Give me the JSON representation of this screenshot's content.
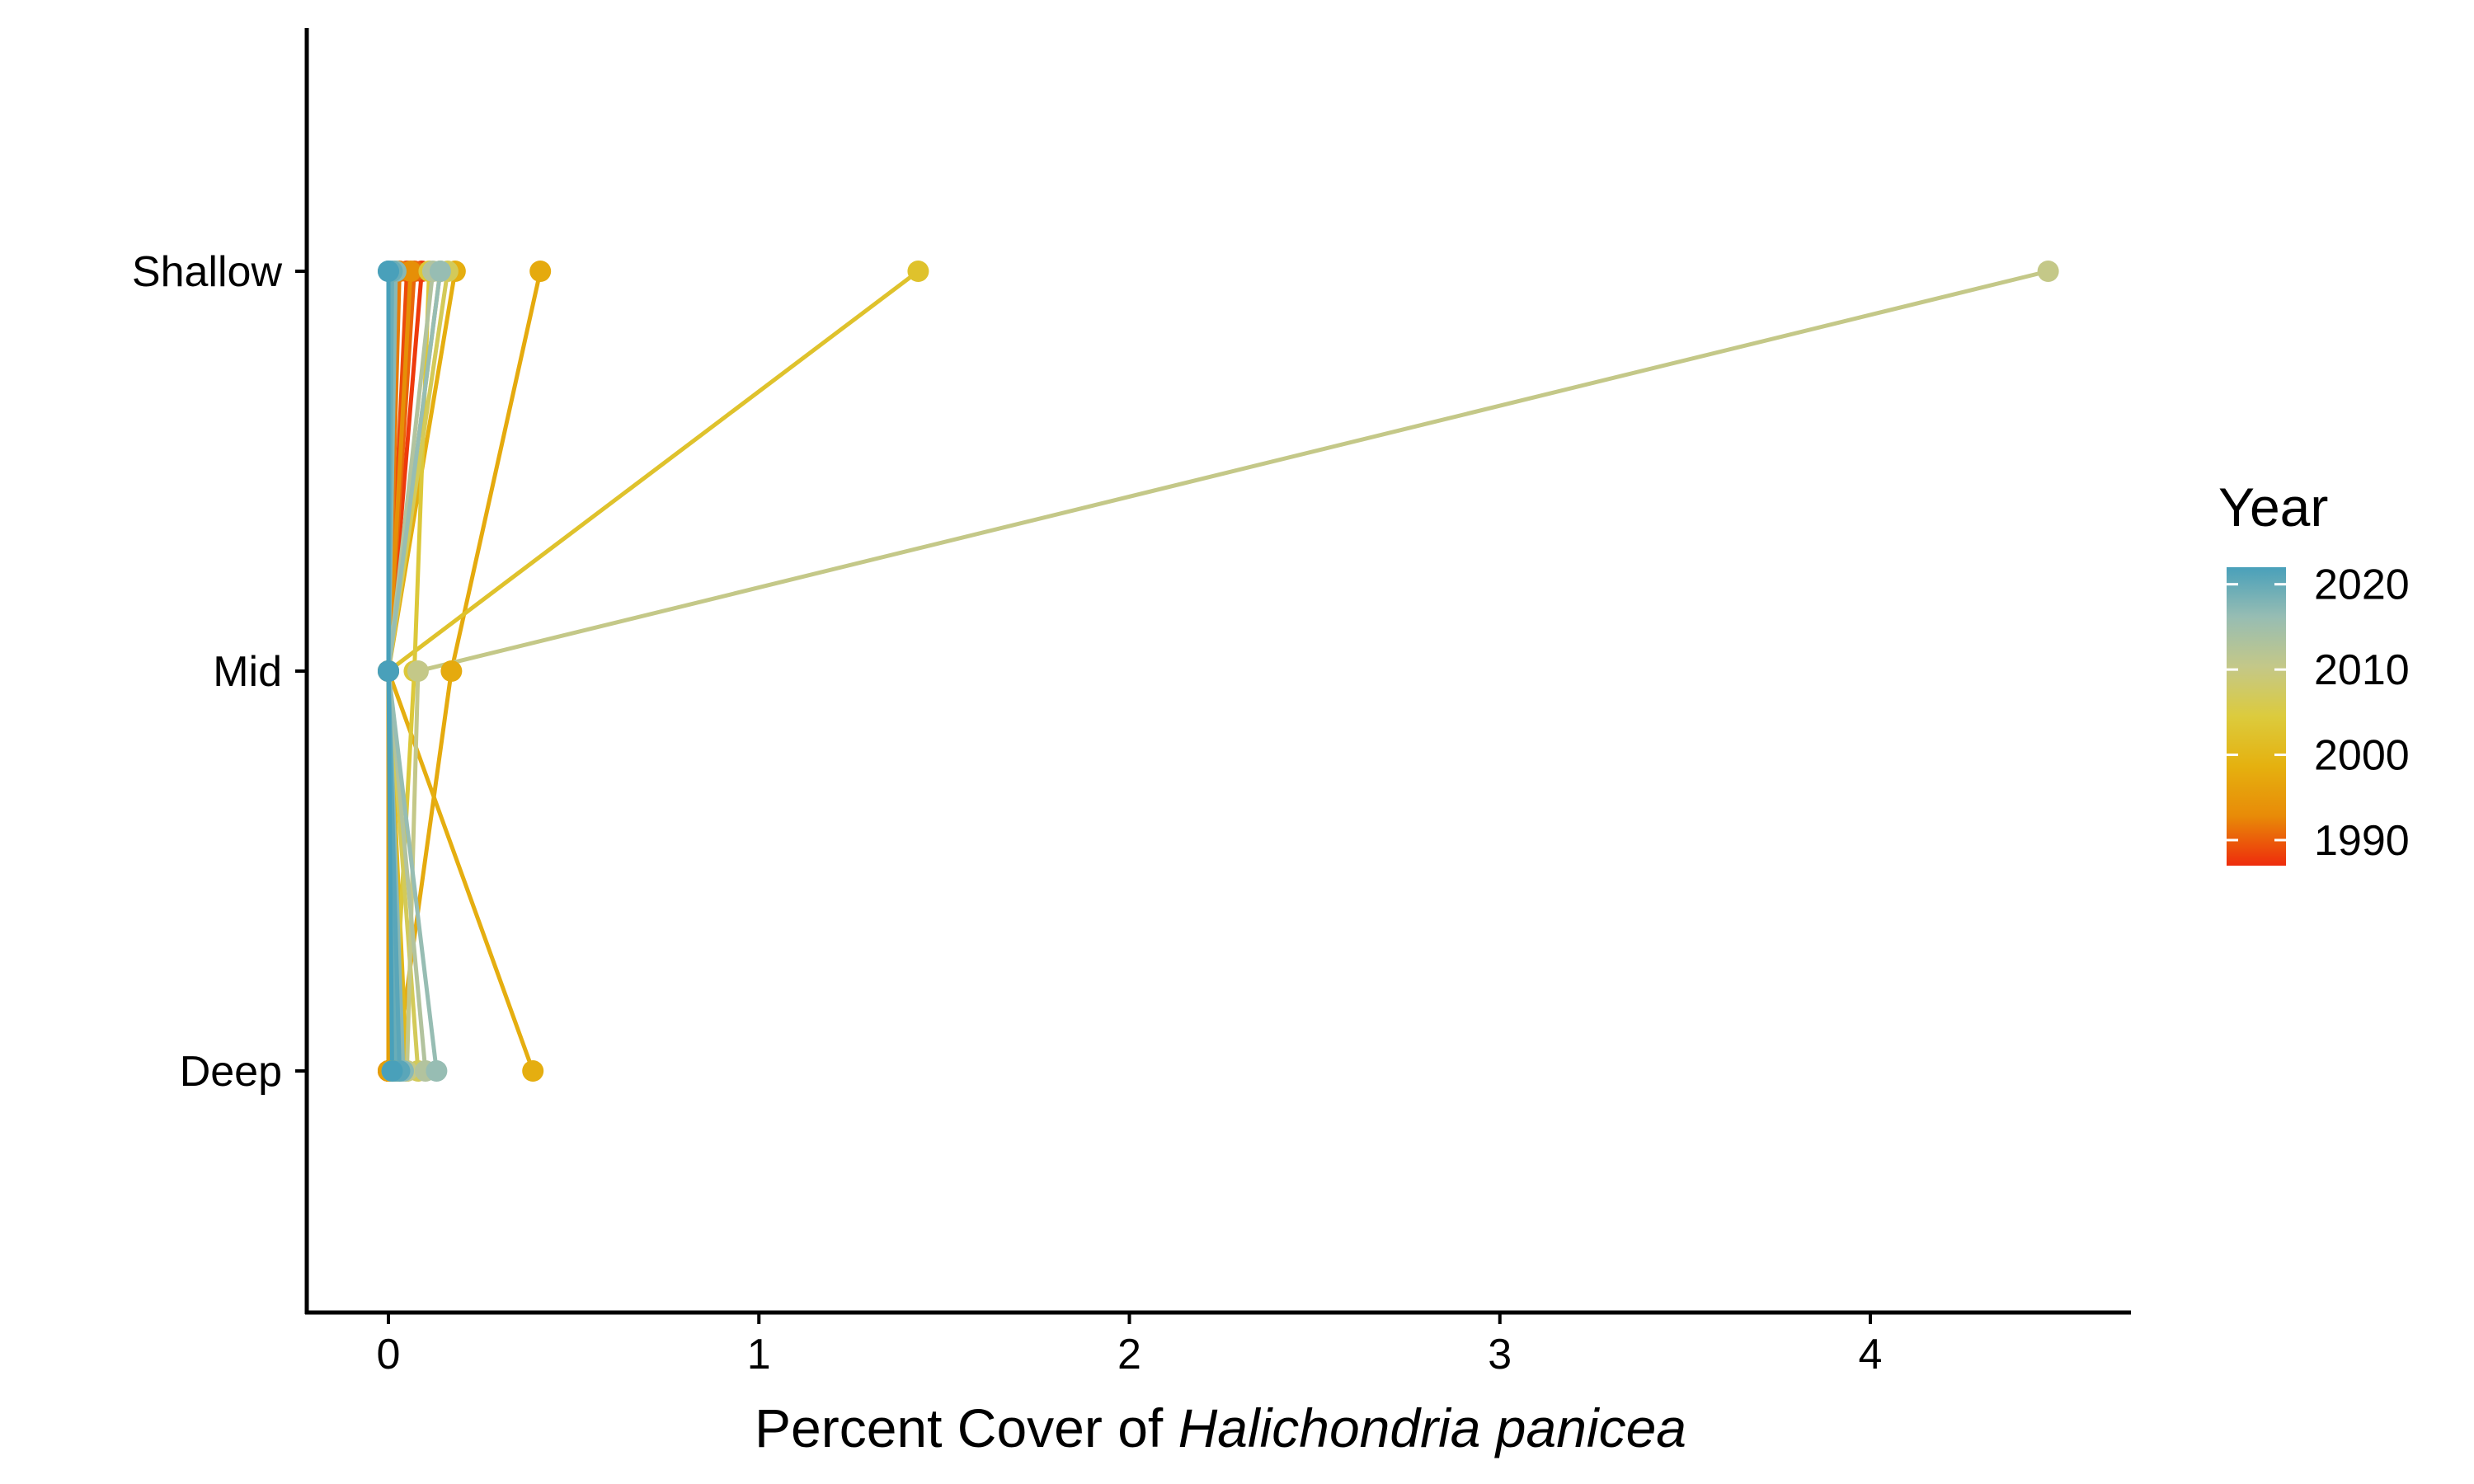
{
  "chart_data": {
    "type": "line",
    "title": "",
    "xlabel_plain": "Percent Cover of ",
    "xlabel_italic": "Halichondria panicea",
    "ylabel": "",
    "xlim": [
      -0.22,
      4.7
    ],
    "x_ticks": [
      0,
      1,
      2,
      3,
      4
    ],
    "y_categories": [
      "Deep",
      "Mid",
      "Shallow"
    ],
    "grid": false,
    "legend": {
      "title": "Year",
      "position": "right",
      "type": "colorbar",
      "range": [
        1987,
        2022
      ],
      "ticks": [
        1990,
        2000,
        2010,
        2020
      ],
      "colors": [
        "#EE2C0C",
        "#E88B08",
        "#E5B10F",
        "#DCCB3D",
        "#C4C888",
        "#97BDB3",
        "#49A0BA"
      ]
    },
    "series": [
      {
        "year": 1988,
        "color": "#EE3A0C",
        "values": {
          "Shallow": 0.09,
          "Mid": 0.0,
          "Deep": 0.0
        }
      },
      {
        "year": 1990,
        "color": "#EC4A0B",
        "values": {
          "Shallow": 0.05,
          "Mid": 0.0,
          "Deep": 0.0
        }
      },
      {
        "year": 1993,
        "color": "#EA650A",
        "values": {
          "Shallow": 0.07,
          "Mid": 0.0,
          "Deep": 0.0
        }
      },
      {
        "year": 1995,
        "color": "#E87A08",
        "values": {
          "Shallow": 0.03,
          "Mid": 0.0,
          "Deep": 0.0
        }
      },
      {
        "year": 1997,
        "color": "#E68F07",
        "values": {
          "Shallow": 0.06,
          "Mid": 0.0,
          "Deep": 0.0
        }
      },
      {
        "year": 1999,
        "color": "#E59F08",
        "values": {
          "Shallow": 0.02,
          "Mid": 0.0,
          "Deep": 0.0
        }
      },
      {
        "year": 2001,
        "color": "#E5AA0E",
        "values": {
          "Shallow": 0.41,
          "Mid": 0.17,
          "Deep": 0.02
        }
      },
      {
        "year": 2002,
        "color": "#E5AE10",
        "values": {
          "Shallow": 0.18,
          "Mid": 0.0,
          "Deep": 0.39
        }
      },
      {
        "year": 2004,
        "color": "#E2B81A",
        "values": {
          "Shallow": 0.14,
          "Mid": 0.0,
          "Deep": 0.05
        }
      },
      {
        "year": 2006,
        "color": "#DFC22C",
        "values": {
          "Shallow": 1.43,
          "Mid": 0.0,
          "Deep": 0.03
        }
      },
      {
        "year": 2008,
        "color": "#DCC83A",
        "values": {
          "Shallow": 0.11,
          "Mid": 0.07,
          "Deep": 0.01
        }
      },
      {
        "year": 2010,
        "color": "#D3CA59",
        "values": {
          "Shallow": 0.16,
          "Mid": 0.0,
          "Deep": 0.08
        }
      },
      {
        "year": 2012,
        "color": "#C4C888",
        "values": {
          "Shallow": 4.48,
          "Mid": 0.08,
          "Deep": 0.05
        }
      },
      {
        "year": 2014,
        "color": "#B2C39E",
        "values": {
          "Shallow": 0.12,
          "Mid": 0.0,
          "Deep": 0.1
        }
      },
      {
        "year": 2016,
        "color": "#97BDB3",
        "values": {
          "Shallow": 0.14,
          "Mid": 0.0,
          "Deep": 0.13
        }
      },
      {
        "year": 2017,
        "color": "#88B8B6",
        "values": {
          "Shallow": 0.02,
          "Mid": 0.0,
          "Deep": 0.04
        }
      },
      {
        "year": 2019,
        "color": "#69ADB8",
        "values": {
          "Shallow": 0.01,
          "Mid": 0.0,
          "Deep": 0.02
        }
      },
      {
        "year": 2020,
        "color": "#5AA6B9",
        "values": {
          "Shallow": 0.0,
          "Mid": 0.0,
          "Deep": 0.03
        }
      },
      {
        "year": 2021,
        "color": "#49A0BA",
        "values": {
          "Shallow": 0.0,
          "Mid": 0.0,
          "Deep": 0.01
        }
      }
    ]
  }
}
